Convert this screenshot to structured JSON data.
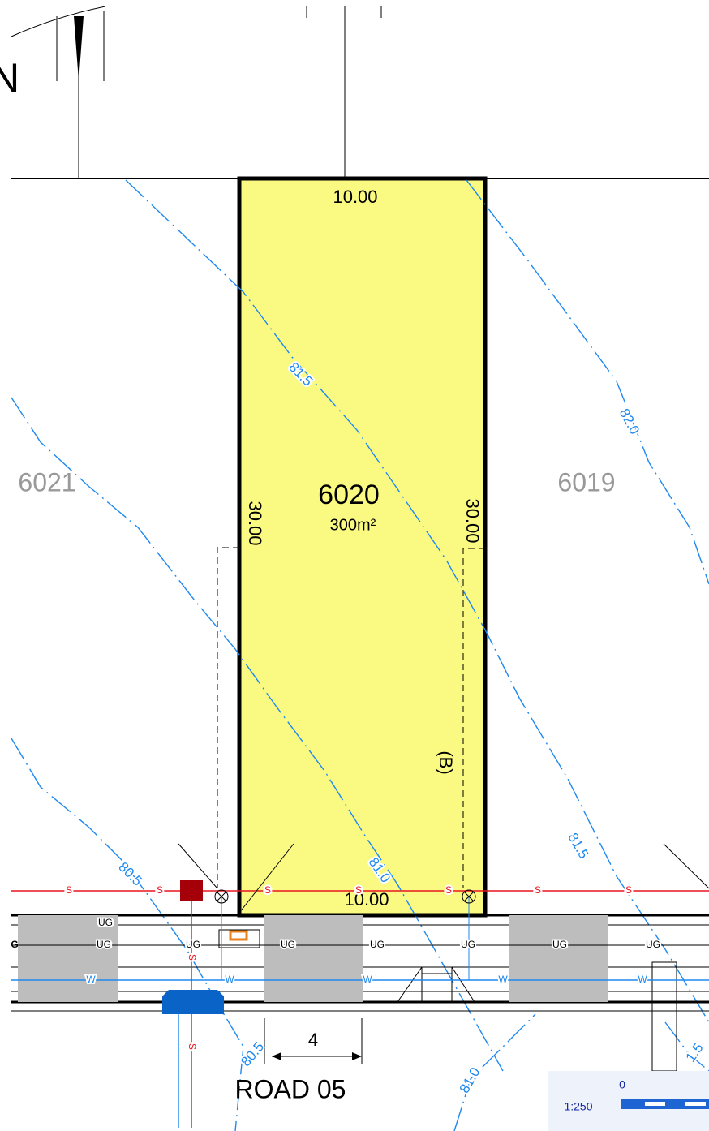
{
  "north": "N",
  "lot": {
    "number": "6020",
    "area": "300m²",
    "frontage_top": "10.00",
    "frontage_bottom": "10.00",
    "side_left": "30.00",
    "side_right": "30.00",
    "easement": "(B)"
  },
  "neighbours": [
    "6021",
    "6019"
  ],
  "contours": [
    "81.5",
    "82.0",
    "81.0",
    "80.5",
    "81.5",
    "81.0",
    "80.5",
    "1.5"
  ],
  "services": {
    "sewer": "S",
    "gas": "UG",
    "gas_partial": "G",
    "water": "W"
  },
  "road": {
    "name": "ROAD 05",
    "dimension": "4"
  },
  "scale": {
    "start": "0",
    "ratio": "1:250"
  }
}
